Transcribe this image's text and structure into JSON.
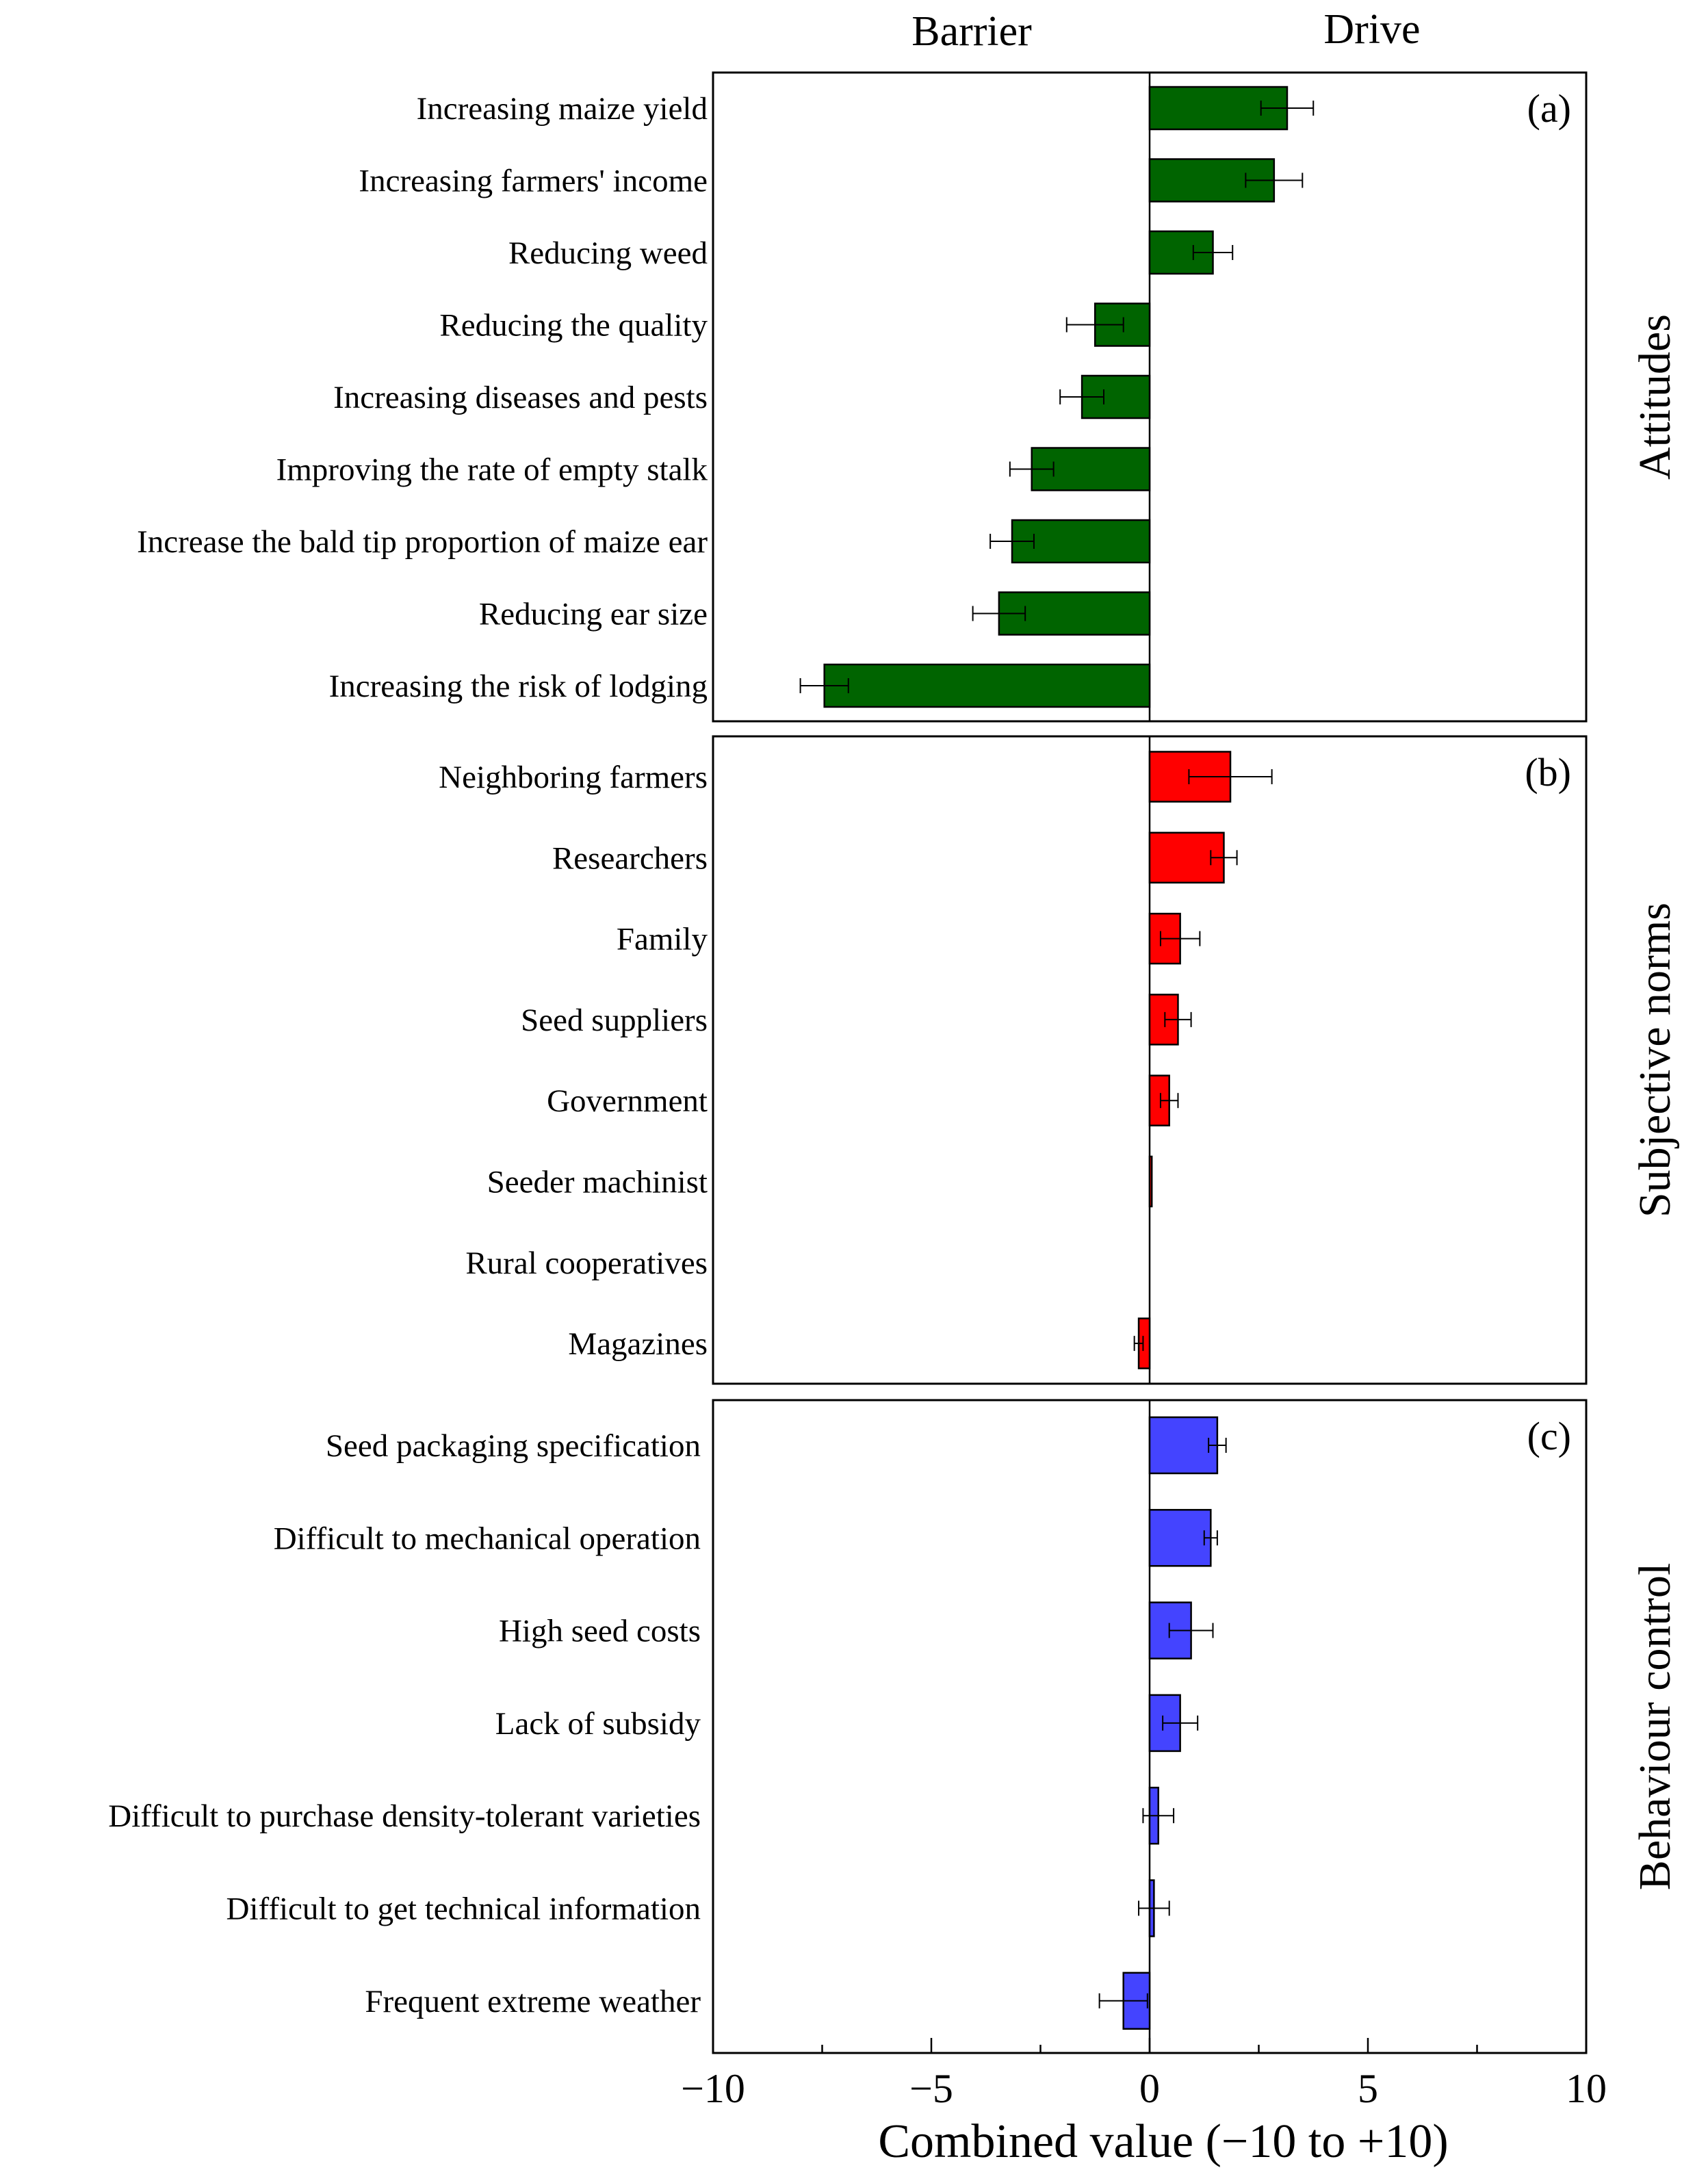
{
  "chart_data": {
    "type": "bar",
    "orientation": "horizontal",
    "header_left": "Barrier",
    "header_right": "Drive",
    "xlabel": "Combined value (−10 to +10)",
    "xlim": [
      -10,
      10
    ],
    "xticks": [
      -10,
      -5,
      0,
      5,
      10
    ],
    "xtick_labels": [
      "−10",
      "−5",
      "0",
      "5",
      "10"
    ],
    "panels": [
      {
        "tag": "(a)",
        "group_label": "Attitudes",
        "color": "#006400",
        "categories": [
          "Increasing maize yield",
          "Increasing farmers' income",
          "Reducing weed",
          "Reducing the quality",
          "Increasing diseases and pests",
          "Improving the rate of empty stalk",
          "Increase the bald tip proportion of maize ear",
          "Reducing ear size",
          "Increasing the risk of lodging"
        ],
        "values": [
          3.15,
          2.85,
          1.45,
          -1.25,
          -1.55,
          -2.7,
          -3.15,
          -3.45,
          -7.45
        ],
        "errors": [
          0.6,
          0.65,
          0.45,
          0.65,
          0.5,
          0.5,
          0.5,
          0.6,
          0.55
        ]
      },
      {
        "tag": "(b)",
        "group_label": "Subjective norms",
        "color": "#ff0000",
        "categories": [
          "Neighboring farmers",
          "Researchers",
          "Family",
          "Seed suppliers",
          "Government",
          "Seeder machinist",
          "Rural cooperatives",
          "Magazines"
        ],
        "values": [
          1.85,
          1.7,
          0.7,
          0.65,
          0.45,
          0.05,
          0.0,
          -0.25
        ],
        "errors": [
          0.95,
          0.3,
          0.45,
          0.3,
          0.2,
          0.0,
          0.0,
          0.1
        ]
      },
      {
        "tag": "(c)",
        "group_label": "Behaviour control",
        "color": "#4444ff",
        "categories": [
          "Seed packaging specification",
          "Difficult to mechanical operation",
          "High seed costs",
          "Lack of subsidy",
          "Difficult to purchase density-tolerant varieties",
          "Difficult to get technical information",
          "Frequent extreme weather"
        ],
        "values": [
          1.55,
          1.4,
          0.95,
          0.7,
          0.2,
          0.1,
          -0.6
        ],
        "errors": [
          0.2,
          0.15,
          0.5,
          0.4,
          0.35,
          0.35,
          0.55
        ]
      }
    ]
  }
}
